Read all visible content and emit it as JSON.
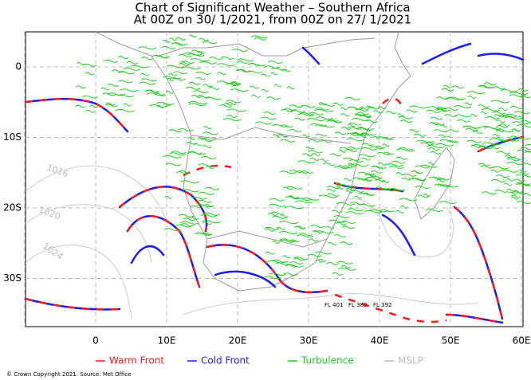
{
  "header": {
    "title": "Chart of Significant Weather – Southern Africa",
    "subtitle": "At 00Z on 30/ 1/2021, from 00Z on 27/ 1/2021"
  },
  "axes": {
    "x_labels": [
      "0",
      "10E",
      "20E",
      "30E",
      "40E",
      "50E",
      "60E"
    ],
    "y_labels": [
      "0",
      "10S",
      "20S",
      "30S"
    ]
  },
  "legend": [
    "Warm Front",
    "Cold Front",
    "Turbulence",
    "MSLP"
  ],
  "isobar_labels": [
    "1016",
    "1020",
    "1024"
  ],
  "flight_levels": [
    "FL 401",
    "FL 382",
    "FL 392"
  ],
  "footer": "© Crown Copyright 2021. Source: Met Office"
}
